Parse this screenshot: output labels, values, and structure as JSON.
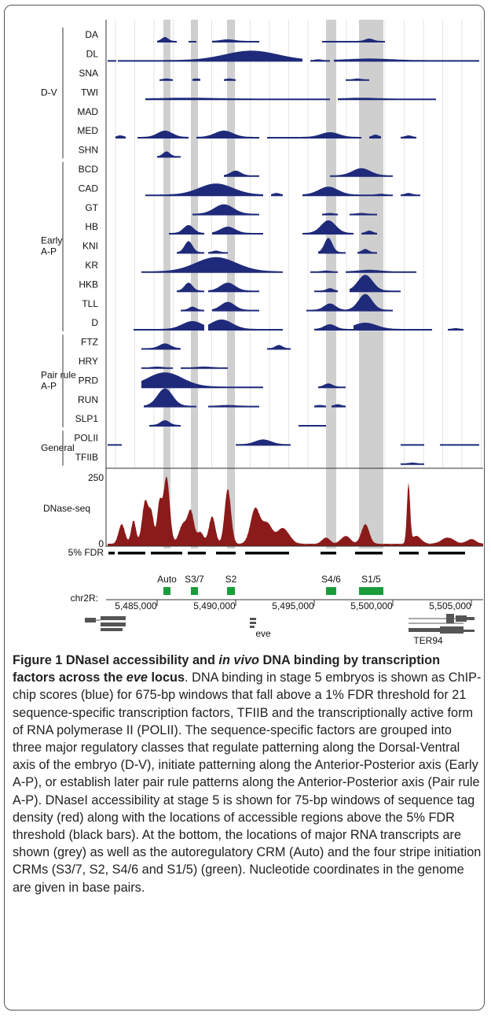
{
  "figure": {
    "groups": [
      {
        "lines": [
          "D-V"
        ],
        "tracks": [
          "DA",
          "DL",
          "SNA",
          "TWI",
          "MAD",
          "MED",
          "SHN"
        ]
      },
      {
        "lines": [
          "Early",
          "A-P"
        ],
        "tracks": [
          "BCD",
          "CAD",
          "GT",
          "HB",
          "KNI",
          "KR",
          "HKB",
          "TLL",
          "D"
        ]
      },
      {
        "lines": [
          "Pair rule",
          "A-P"
        ],
        "tracks": [
          "FTZ",
          "HRY",
          "PRD",
          "RUN",
          "SLP1"
        ]
      },
      {
        "lines": [
          "General"
        ],
        "tracks": [
          "POLII",
          "TFIIB"
        ]
      }
    ],
    "dnase": {
      "label": "DNase-seq",
      "top_label": "250",
      "bottom_label": "0",
      "fdr_label": "5% FDR"
    },
    "crms": [
      "Auto",
      "S3/7",
      "S2",
      "S4/6",
      "S1/5"
    ],
    "chrom": "chr2R:",
    "coords": [
      "5,485,000",
      "5,490,000",
      "5,495,000",
      "5,500,000",
      "5,505,000"
    ],
    "genes": [
      "eve",
      "TER94"
    ]
  },
  "caption": {
    "title": [
      "Figure 1 DNaseI accessibility and ",
      "in vivo",
      " DNA binding by transcription factors across the ",
      "eve",
      " locus"
    ],
    "text": ". DNA binding in stage 5 embryos is shown as ChIP-chip scores (blue) for 675-bp windows that fall above a 1% FDR threshold for 21 sequence-specific transcription factors, TFIIB and the transcriptionally active form of RNA polymerase II (POLII). The sequence-specific factors are grouped into three major regulatory classes that regulate patterning along the Dorsal-Ventral axis of the embryo (D-V), initiate patterning along the Anterior-Posterior axis (Early A-P), or establish later pair rule patterns along the Anterior-Posterior axis (Pair rule A-P). DNaseI accessibility at stage 5 is shown for 75-bp windows of sequence tag density (red) along with the locations of accessible regions above the 5% FDR threshold (black bars). At the bottom, the locations of major RNA transcripts are shown (grey) as well as the autoregulatory CRM (Auto) and the four stripe initiation CRMs (S3/7, S2, S4/6 and S1/5) (green). Nucleotide coordinates in the genome are given in base pairs."
  }
}
